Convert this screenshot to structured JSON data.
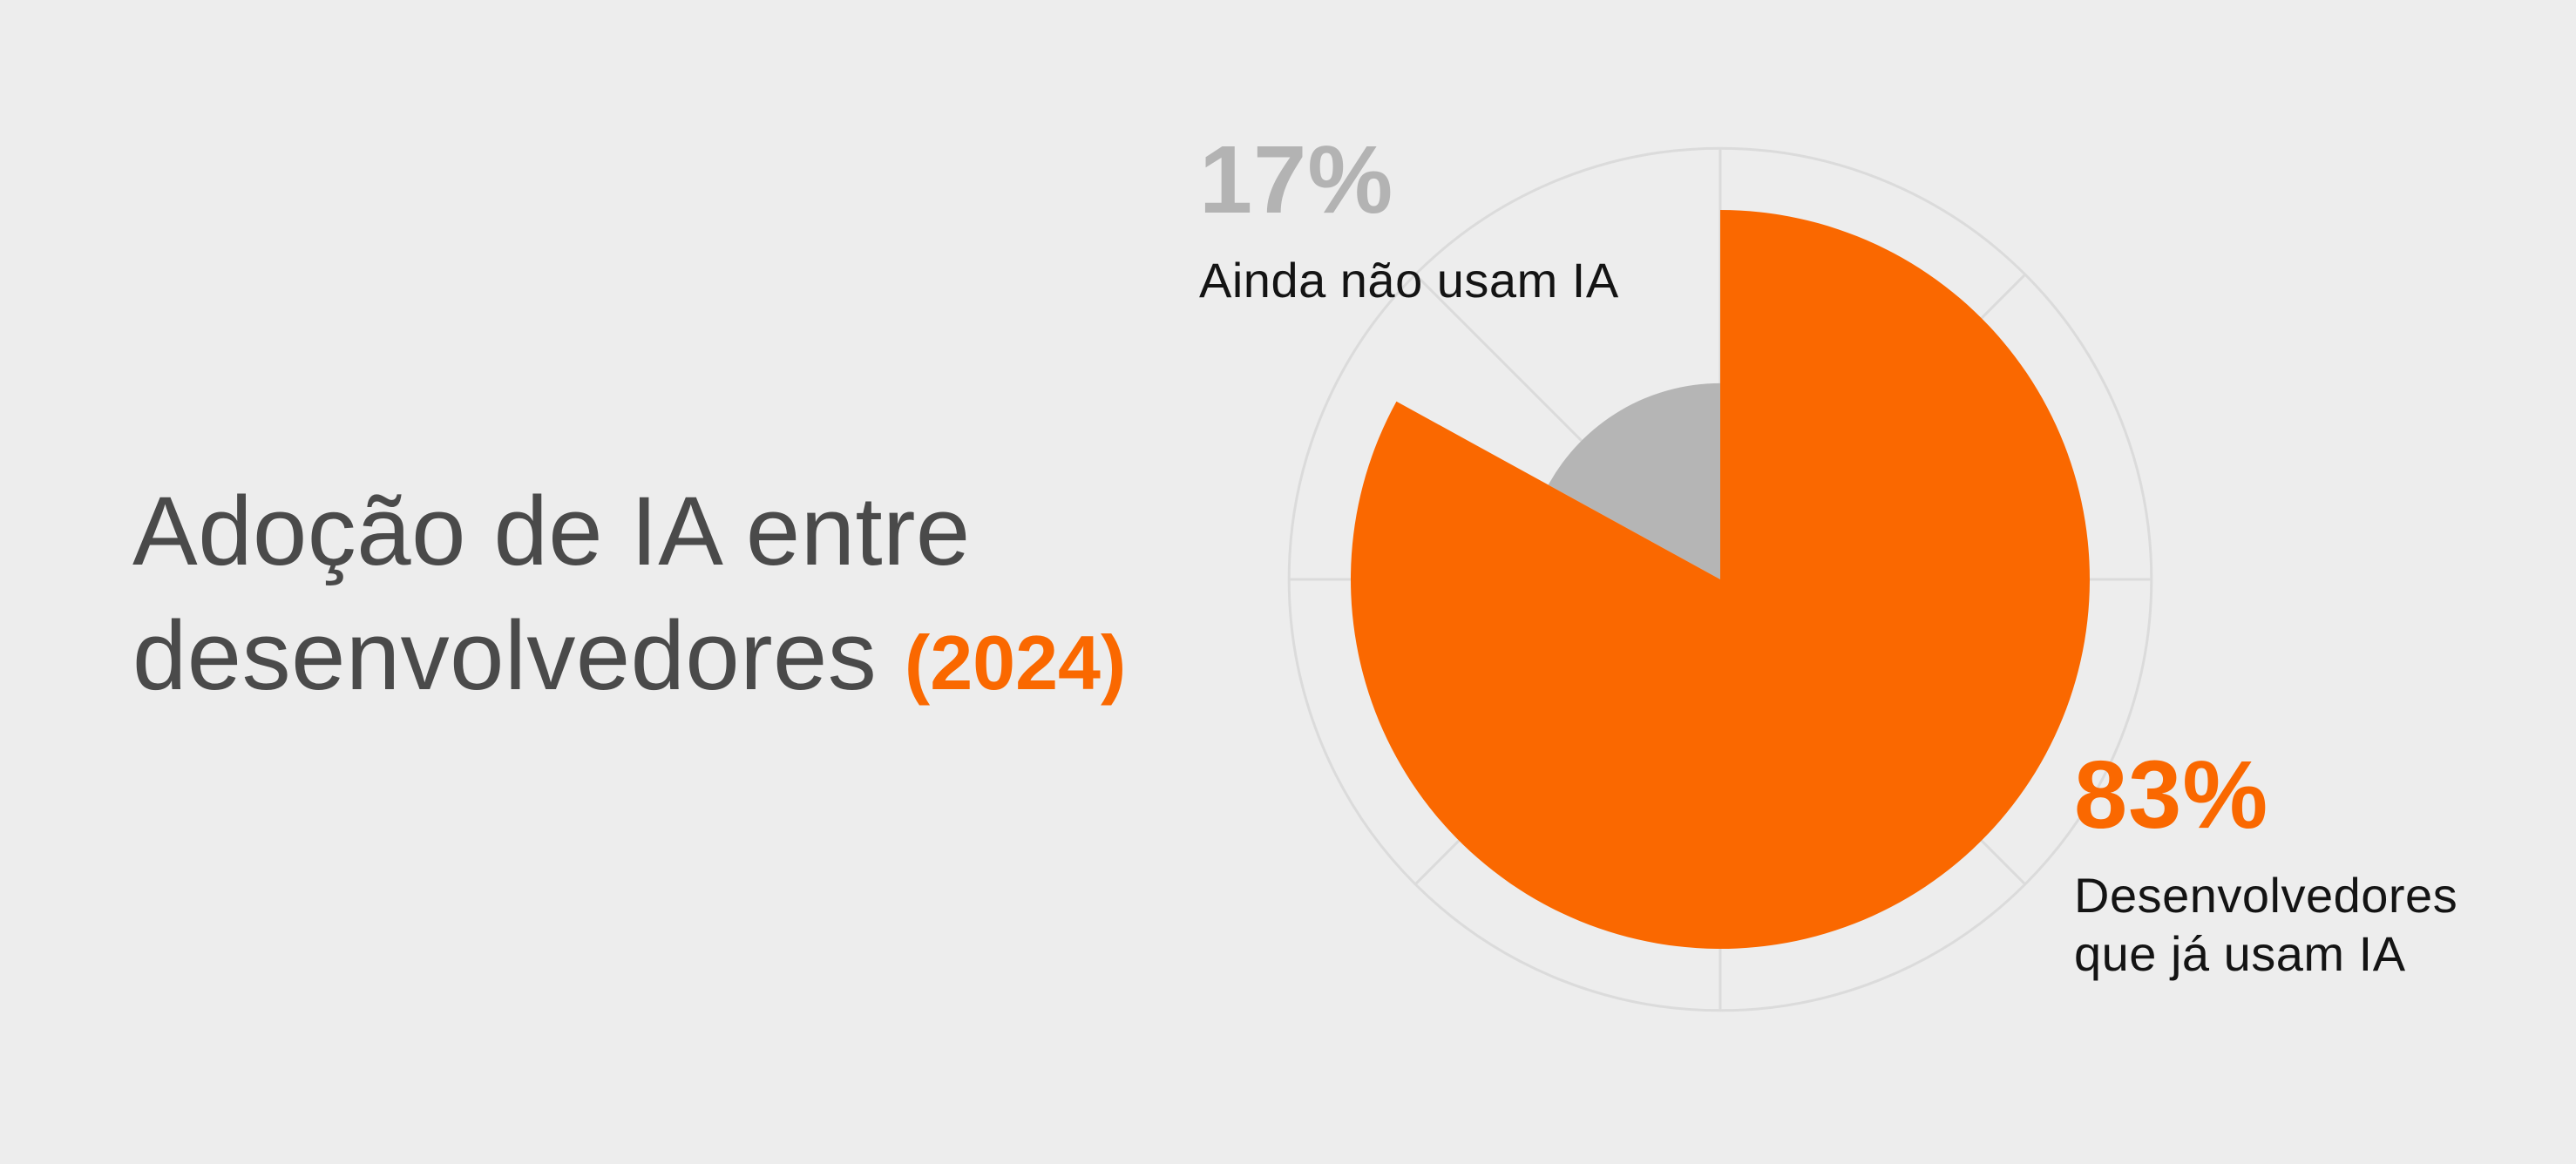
{
  "background_color": "#EDEDED",
  "title": {
    "line1": "Adoção de IA entre",
    "line2": "desenvolvedores",
    "year_suffix": "(2024)",
    "text_color": "#4A4A4A",
    "accent_color": "#FA6800"
  },
  "chart_data": {
    "type": "pie",
    "title": "Adoção de IA entre desenvolvedores (2024)",
    "start_angle_deg": 0,
    "direction": "clockwise",
    "categories": [
      "Desenvolvedores que já usam IA",
      "Ainda não usam IA"
    ],
    "values": [
      83,
      17
    ],
    "slices": [
      {
        "label": "Desenvolvedores que já usam IA",
        "value_pct": 83,
        "color": "#FA6800",
        "radius_ratio": 1.0,
        "callout": {
          "pct_text": "83%",
          "pct_color": "#FA6800",
          "lines": [
            "Desenvolvedores",
            "que já usam IA"
          ]
        }
      },
      {
        "label": "Ainda não usam IA",
        "value_pct": 17,
        "color": "#B5B5B5",
        "radius_ratio": 0.531,
        "callout": {
          "pct_text": "17%",
          "pct_color": "#B3B3B3",
          "lines": [
            "Ainda não usam IA"
          ]
        }
      }
    ],
    "ring": {
      "stroke_color": "#DBDBDB",
      "stroke_width": 3,
      "radius_ratio": 1.167,
      "spoke_count": 8,
      "legend": "decorative outer circle with 8 radial spokes every 45 degrees, drawn beneath the slices"
    }
  }
}
